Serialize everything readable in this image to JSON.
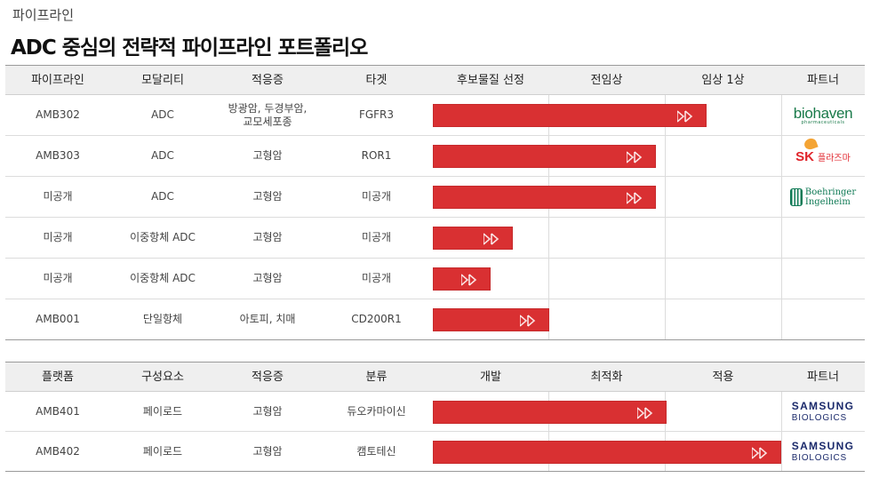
{
  "eyebrow": "파이프라인",
  "headline": "ADC 중심의 전략적 파이프라인 포트폴리오",
  "pipeline": {
    "headers": [
      "파이프라인",
      "모달리티",
      "적응증",
      "타겟",
      "후보물질 선정",
      "전임상",
      "임상 1상",
      "파트너"
    ],
    "rows": [
      {
        "name": "AMB302",
        "modality": "ADC",
        "indication": [
          "방광암, 두경부암,",
          "교모세포종"
        ],
        "target": "FGFR3",
        "progress": 0.785,
        "partner": "biohaven"
      },
      {
        "name": "AMB303",
        "modality": "ADC",
        "indication": [
          "고형암"
        ],
        "target": "ROR1",
        "progress": 0.64,
        "partner": "sk"
      },
      {
        "name": "미공개",
        "modality": "ADC",
        "indication": [
          "고형암"
        ],
        "target": "미공개",
        "progress": 0.64,
        "partner": "boehringer"
      },
      {
        "name": "미공개",
        "modality": "이중항체 ADC",
        "indication": [
          "고형암"
        ],
        "target": "미공개",
        "progress": 0.23,
        "partner": ""
      },
      {
        "name": "미공개",
        "modality": "이중항체 ADC",
        "indication": [
          "고형암"
        ],
        "target": "미공개",
        "progress": 0.165,
        "partner": ""
      },
      {
        "name": "AMB001",
        "modality": "단일항체",
        "indication": [
          "아토피, 치매"
        ],
        "target": "CD200R1",
        "progress": 0.335,
        "partner": ""
      }
    ]
  },
  "platform": {
    "headers": [
      "플랫폼",
      "구성요소",
      "적응증",
      "분류",
      "개발",
      "최적화",
      "적용",
      "파트너"
    ],
    "rows": [
      {
        "name": "AMB401",
        "component": "페이로드",
        "indication": "고형암",
        "category": "듀오카마이신",
        "progress": 0.67,
        "partner": "samsung"
      },
      {
        "name": "AMB402",
        "component": "페이로드",
        "indication": "고형암",
        "category": "캠토테신",
        "progress": 1.0,
        "partner": "samsung"
      }
    ]
  },
  "partners": {
    "biohaven": {
      "name": "biohaven",
      "sub": "pharmaceuticals",
      "color": "#1a7a4a"
    },
    "sk": {
      "name": "SK",
      "sub": "플라즈마",
      "color": "#e0242b",
      "accent": "#f39a1e"
    },
    "boehringer": {
      "name": "Boehringer",
      "sub": "Ingelheim",
      "color": "#0f7a55"
    },
    "samsung": {
      "name": "SAMSUNG",
      "sub": "BIOLOGICS",
      "color": "#1b2a6b"
    }
  },
  "colors": {
    "bar": "#d93032",
    "header_bg": "#efefef"
  }
}
